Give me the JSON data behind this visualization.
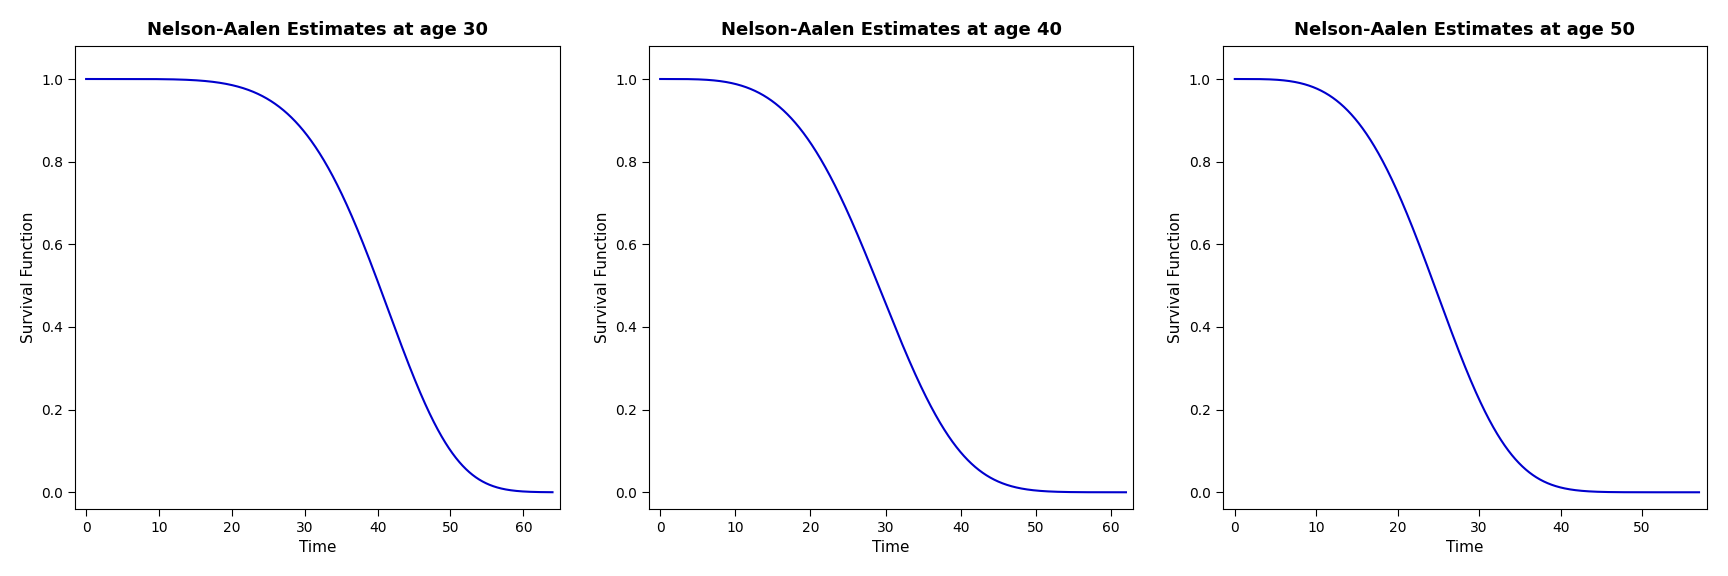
{
  "panels": [
    {
      "title": "Nelson-Aalen Estimates at age 30",
      "xlabel": "Time",
      "ylabel": "Survival Function",
      "xlim": [
        -1.5,
        65
      ],
      "ylim": [
        -0.04,
        1.08
      ],
      "xticks": [
        0,
        10,
        20,
        30,
        40,
        50,
        60
      ],
      "yticks": [
        0.0,
        0.2,
        0.4,
        0.6,
        0.8,
        1.0
      ],
      "t_max": 64,
      "weibull_scale": 43.0,
      "weibull_shape": 5.5
    },
    {
      "title": "Nelson-Aalen Estimates at age 40",
      "xlabel": "Time",
      "ylabel": "Survival Function",
      "xlim": [
        -1.5,
        63
      ],
      "ylim": [
        -0.04,
        1.08
      ],
      "xticks": [
        0,
        10,
        20,
        30,
        40,
        50,
        60
      ],
      "yticks": [
        0.0,
        0.2,
        0.4,
        0.6,
        0.8,
        1.0
      ],
      "t_max": 62,
      "weibull_scale": 32.0,
      "weibull_shape": 3.8
    },
    {
      "title": "Nelson-Aalen Estimates at age 50",
      "xlabel": "Time",
      "ylabel": "Survival Function",
      "xlim": [
        -1.5,
        58
      ],
      "ylim": [
        -0.04,
        1.08
      ],
      "xticks": [
        0,
        10,
        20,
        30,
        40,
        50
      ],
      "yticks": [
        0.0,
        0.2,
        0.4,
        0.6,
        0.8,
        1.0
      ],
      "t_max": 57,
      "weibull_scale": 27.0,
      "weibull_shape": 3.8
    }
  ],
  "line_color": "#0000CD",
  "line_width": 1.5,
  "bg_color": "#FFFFFF",
  "title_fontsize": 13,
  "label_fontsize": 11,
  "tick_fontsize": 10,
  "title_fontweight": "bold"
}
